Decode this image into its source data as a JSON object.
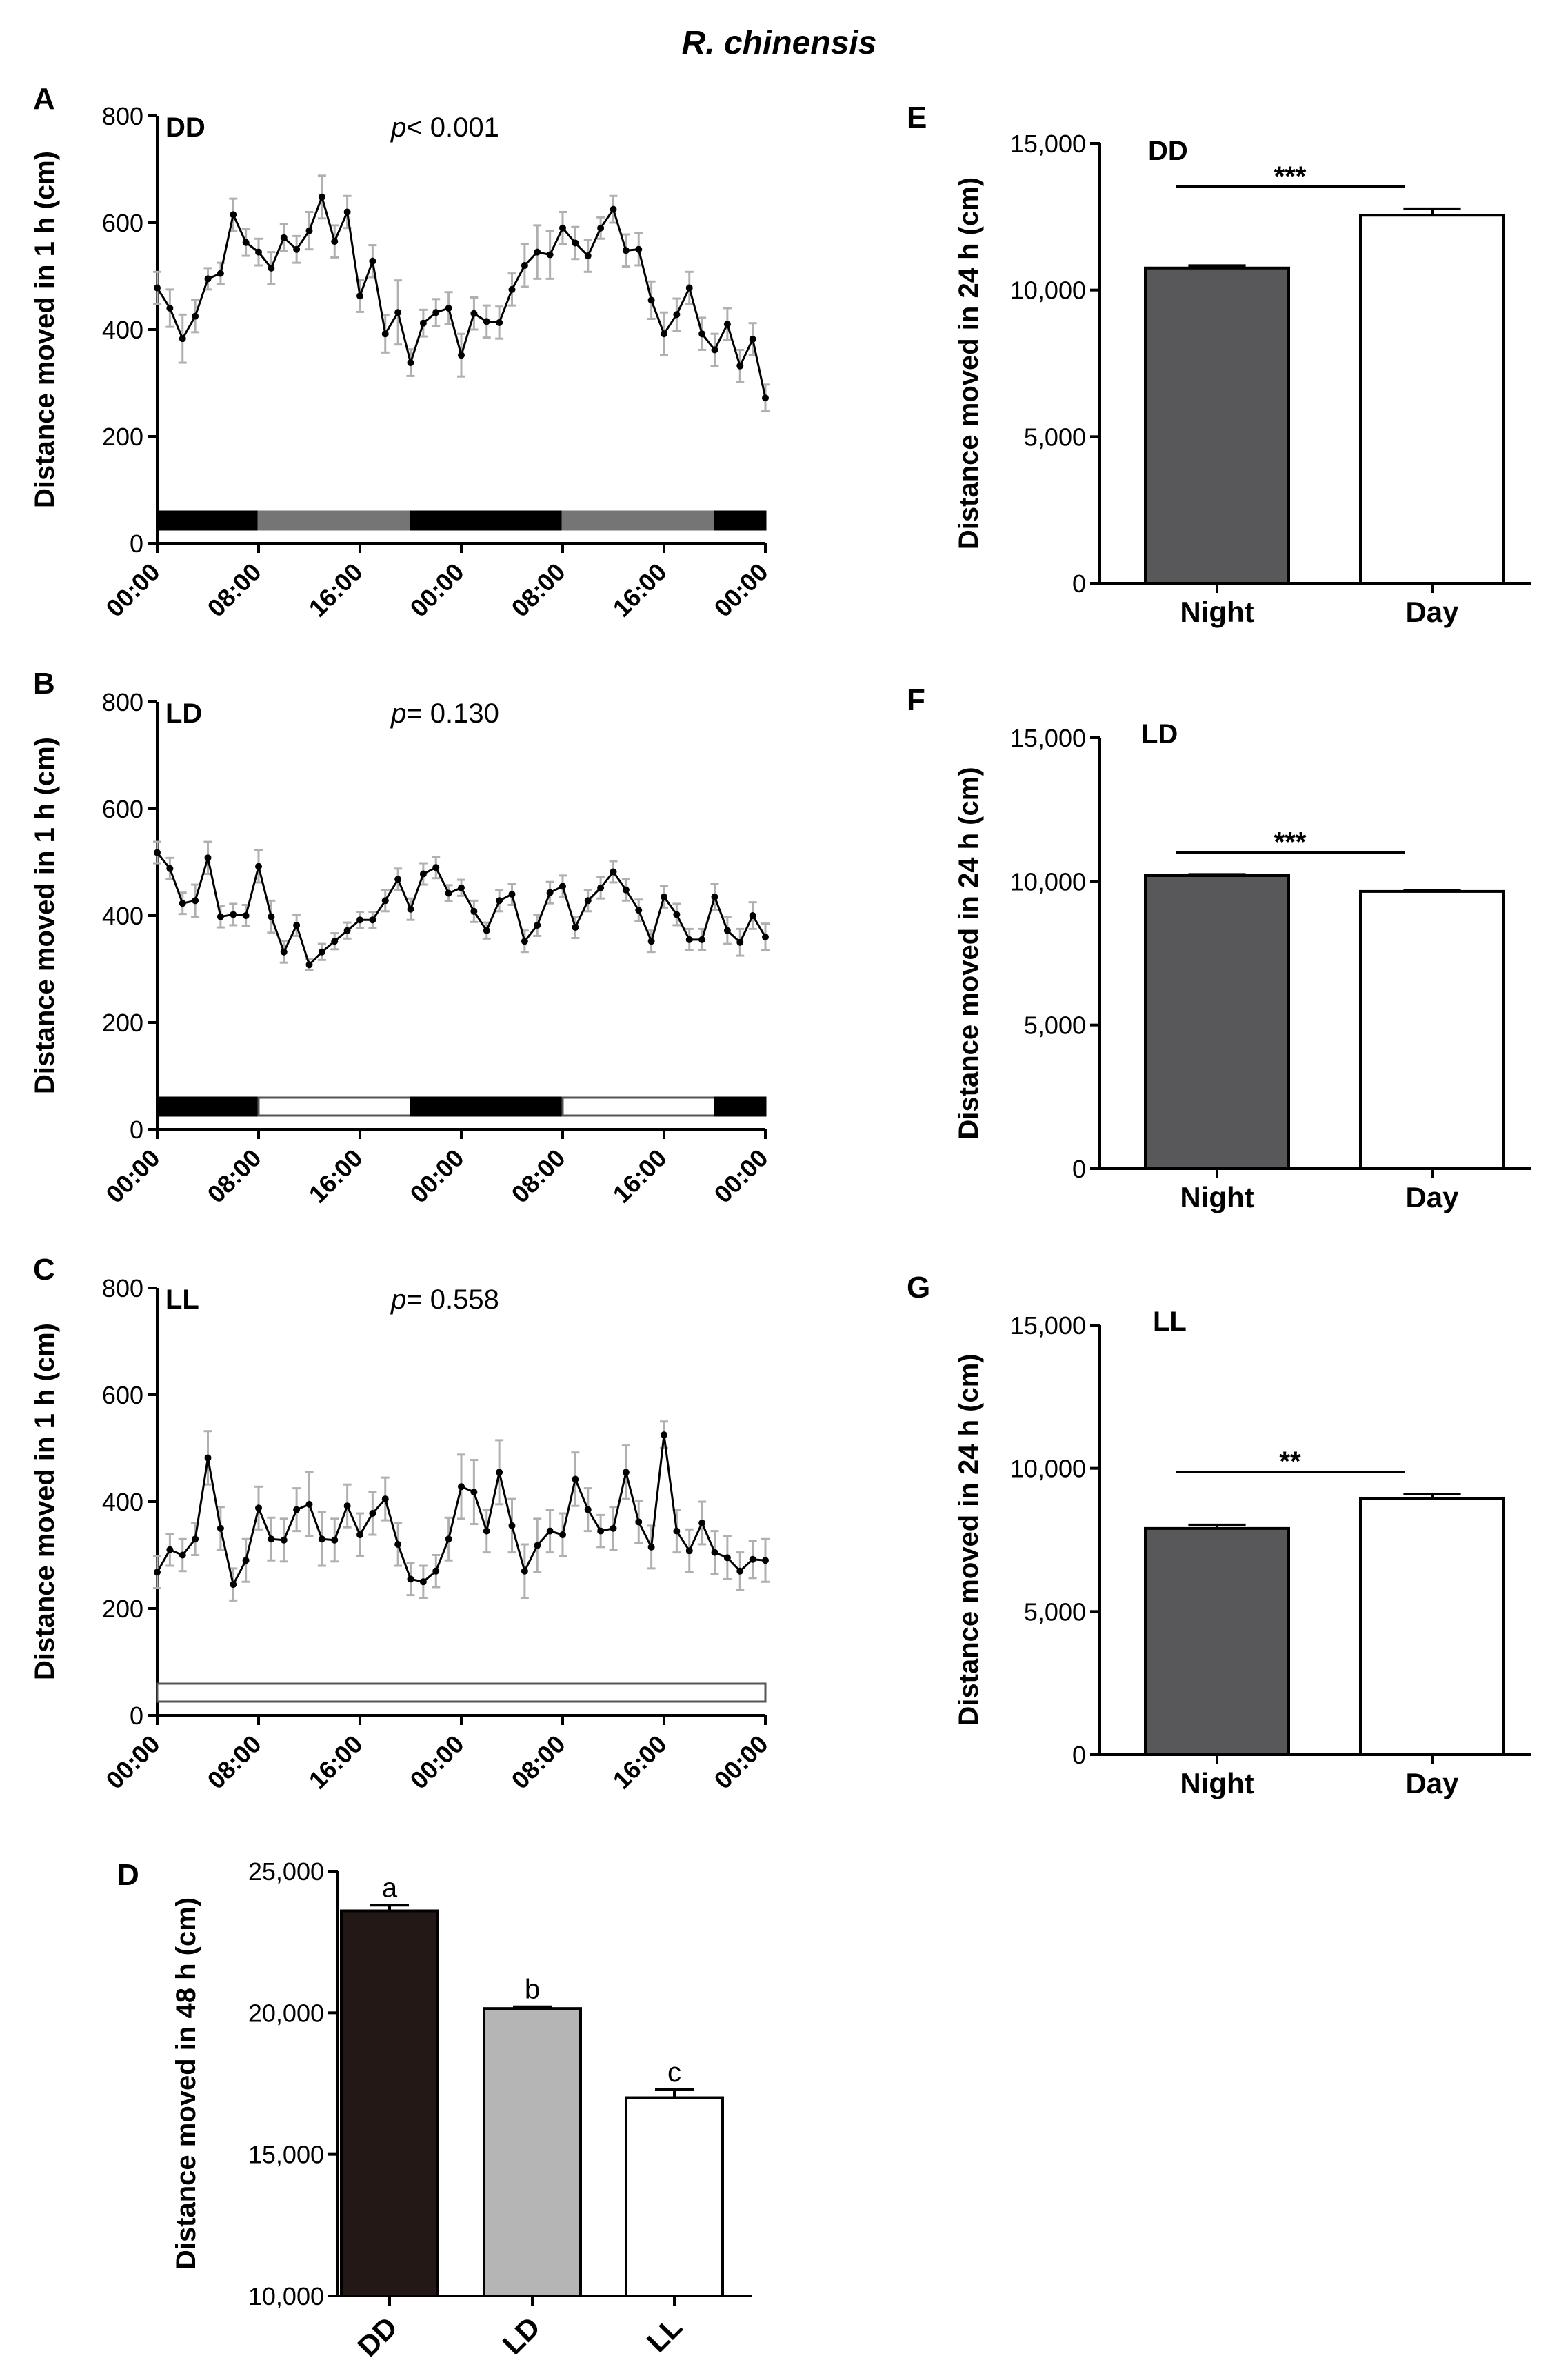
{
  "title": "R. chinensis",
  "chart_data": [
    {
      "panel": "A",
      "type": "line",
      "condition": "DD",
      "p_prefix": "p",
      "p_text": "< 0.001",
      "ylabel": "Distance moved in 1 h (cm)",
      "ylim": [
        0,
        800
      ],
      "yticks": [
        "0",
        "200",
        "400",
        "600",
        "800"
      ],
      "xticks": [
        "00:00",
        "08:00",
        "16:00",
        "00:00",
        "08:00",
        "16:00",
        "00:00"
      ],
      "x_hours": [
        0,
        1,
        2,
        3,
        4,
        5,
        6,
        7,
        8,
        9,
        10,
        11,
        12,
        13,
        14,
        15,
        16,
        17,
        18,
        19,
        20,
        21,
        22,
        23,
        24,
        25,
        26,
        27,
        28,
        29,
        30,
        31,
        32,
        33,
        34,
        35,
        36,
        37,
        38,
        39,
        40,
        41,
        42,
        43,
        44,
        45,
        46,
        47,
        48
      ],
      "values": [
        478,
        440,
        383,
        425,
        495,
        505,
        615,
        563,
        545,
        515,
        572,
        550,
        585,
        648,
        565,
        620,
        463,
        528,
        392,
        432,
        338,
        412,
        432,
        440,
        352,
        430,
        415,
        413,
        475,
        520,
        545,
        540,
        590,
        562,
        538,
        590,
        625,
        548,
        550,
        455,
        392,
        428,
        478,
        392,
        362,
        410,
        332,
        382,
        272
      ],
      "errors": [
        30,
        35,
        45,
        30,
        20,
        20,
        30,
        25,
        25,
        30,
        25,
        25,
        35,
        40,
        30,
        30,
        30,
        30,
        35,
        60,
        25,
        25,
        25,
        30,
        40,
        30,
        30,
        30,
        30,
        40,
        50,
        45,
        30,
        30,
        30,
        20,
        25,
        30,
        30,
        35,
        40,
        30,
        30,
        30,
        30,
        30,
        30,
        30,
        25
      ],
      "light_bar": [
        {
          "state": "dark",
          "from": 0,
          "to": 8
        },
        {
          "state": "subjective-day",
          "from": 8,
          "to": 20
        },
        {
          "state": "dark",
          "from": 20,
          "to": 32
        },
        {
          "state": "subjective-day",
          "from": 32,
          "to": 44
        },
        {
          "state": "dark",
          "from": 44,
          "to": 48
        }
      ]
    },
    {
      "panel": "B",
      "type": "line",
      "condition": "LD",
      "p_prefix": "p",
      "p_text": "= 0.130",
      "ylabel": "Distance moved in 1 h (cm)",
      "ylim": [
        0,
        800
      ],
      "yticks": [
        "0",
        "200",
        "400",
        "600",
        "800"
      ],
      "xticks": [
        "00:00",
        "08:00",
        "16:00",
        "00:00",
        "08:00",
        "16:00",
        "00:00"
      ],
      "x_hours": [
        0,
        1,
        2,
        3,
        4,
        5,
        6,
        7,
        8,
        9,
        10,
        11,
        12,
        13,
        14,
        15,
        16,
        17,
        18,
        19,
        20,
        21,
        22,
        23,
        24,
        25,
        26,
        27,
        28,
        29,
        30,
        31,
        32,
        33,
        34,
        35,
        36,
        37,
        38,
        39,
        40,
        41,
        42,
        43,
        44,
        45,
        46,
        47,
        48
      ],
      "values": [
        518,
        488,
        423,
        428,
        508,
        398,
        402,
        400,
        492,
        398,
        332,
        382,
        308,
        332,
        352,
        372,
        392,
        392,
        428,
        468,
        412,
        478,
        490,
        442,
        452,
        408,
        372,
        428,
        440,
        352,
        382,
        443,
        455,
        378,
        428,
        452,
        482,
        448,
        410,
        352,
        435,
        402,
        355,
        355,
        435,
        372,
        350,
        400,
        360
      ],
      "errors": [
        20,
        20,
        20,
        30,
        30,
        20,
        20,
        20,
        30,
        30,
        20,
        20,
        10,
        15,
        15,
        15,
        15,
        15,
        20,
        20,
        20,
        20,
        20,
        15,
        15,
        20,
        15,
        20,
        20,
        20,
        20,
        20,
        20,
        20,
        20,
        20,
        20,
        20,
        20,
        20,
        20,
        20,
        20,
        20,
        25,
        25,
        25,
        25,
        25
      ],
      "light_bar": [
        {
          "state": "dark",
          "from": 0,
          "to": 8
        },
        {
          "state": "light",
          "from": 8,
          "to": 20
        },
        {
          "state": "dark",
          "from": 20,
          "to": 32
        },
        {
          "state": "light",
          "from": 32,
          "to": 44
        },
        {
          "state": "dark",
          "from": 44,
          "to": 48
        }
      ]
    },
    {
      "panel": "C",
      "type": "line",
      "condition": "LL",
      "p_prefix": "p",
      "p_text": "= 0.558",
      "ylabel": "Distance moved in 1 h (cm)",
      "ylim": [
        0,
        800
      ],
      "yticks": [
        "0",
        "200",
        "400",
        "600",
        "800"
      ],
      "xticks": [
        "00:00",
        "08:00",
        "16:00",
        "00:00",
        "08:00",
        "16:00",
        "00:00"
      ],
      "x_hours": [
        0,
        1,
        2,
        3,
        4,
        5,
        6,
        7,
        8,
        9,
        10,
        11,
        12,
        13,
        14,
        15,
        16,
        17,
        18,
        19,
        20,
        21,
        22,
        23,
        24,
        25,
        26,
        27,
        28,
        29,
        30,
        31,
        32,
        33,
        34,
        35,
        36,
        37,
        38,
        39,
        40,
        41,
        42,
        43,
        44,
        45,
        46,
        47,
        48
      ],
      "values": [
        268,
        310,
        300,
        330,
        482,
        350,
        245,
        290,
        388,
        330,
        328,
        385,
        395,
        330,
        328,
        392,
        338,
        378,
        405,
        320,
        255,
        250,
        270,
        330,
        428,
        418,
        345,
        455,
        355,
        270,
        318,
        345,
        338,
        442,
        385,
        345,
        350,
        455,
        362,
        315,
        525,
        345,
        308,
        360,
        305,
        295,
        270,
        292,
        290
      ],
      "errors": [
        30,
        30,
        30,
        30,
        50,
        40,
        30,
        40,
        40,
        40,
        40,
        40,
        60,
        50,
        40,
        40,
        40,
        40,
        40,
        40,
        30,
        30,
        30,
        40,
        60,
        60,
        40,
        60,
        50,
        50,
        50,
        40,
        40,
        50,
        40,
        30,
        40,
        50,
        40,
        40,
        25,
        40,
        40,
        40,
        40,
        40,
        35,
        35,
        40
      ],
      "light_bar": [
        {
          "state": "light",
          "from": 0,
          "to": 48
        }
      ]
    },
    {
      "panel": "D",
      "type": "bar",
      "condition": "",
      "ylabel": "Distance moved in 48 h (cm)",
      "ylim": [
        10000,
        25000
      ],
      "yticks": [
        "10,000",
        "15,000",
        "20,000",
        "25,000"
      ],
      "categories": [
        "DD",
        "LD",
        "LL"
      ],
      "values": [
        23600,
        20150,
        17000
      ],
      "errors": [
        200,
        60,
        280
      ],
      "significance": [
        "a",
        "b",
        "c"
      ],
      "colors": [
        "#231815",
        "#b5b5b6",
        "#ffffff"
      ]
    },
    {
      "panel": "E",
      "type": "bar",
      "condition": "DD",
      "ylabel": "Distance moved in 24 h (cm)",
      "ylim": [
        0,
        15000
      ],
      "yticks": [
        "0",
        "5,000",
        "10,000",
        "15,000"
      ],
      "categories": [
        "Night",
        "Day"
      ],
      "values": [
        10750,
        12550
      ],
      "errors": [
        80,
        220
      ],
      "stars": "***",
      "colors": [
        "#58585a",
        "#ffffff"
      ]
    },
    {
      "panel": "F",
      "type": "bar",
      "condition": "LD",
      "ylabel": "Distance moved in 24 h (cm)",
      "ylim": [
        0,
        15000
      ],
      "yticks": [
        "0",
        "5,000",
        "10,000",
        "15,000"
      ],
      "categories": [
        "Night",
        "Day"
      ],
      "values": [
        10200,
        9650
      ],
      "errors": [
        40,
        40
      ],
      "stars": "***",
      "colors": [
        "#58585a",
        "#ffffff"
      ]
    },
    {
      "panel": "G",
      "type": "bar",
      "condition": "LL",
      "ylabel": "Distance moved in 24 h (cm)",
      "ylim": [
        0,
        15000
      ],
      "yticks": [
        "0",
        "5,000",
        "10,000",
        "15,000"
      ],
      "categories": [
        "Night",
        "Day"
      ],
      "values": [
        7900,
        8950
      ],
      "errors": [
        120,
        150
      ],
      "stars": "**",
      "colors": [
        "#58585a",
        "#ffffff"
      ]
    }
  ]
}
